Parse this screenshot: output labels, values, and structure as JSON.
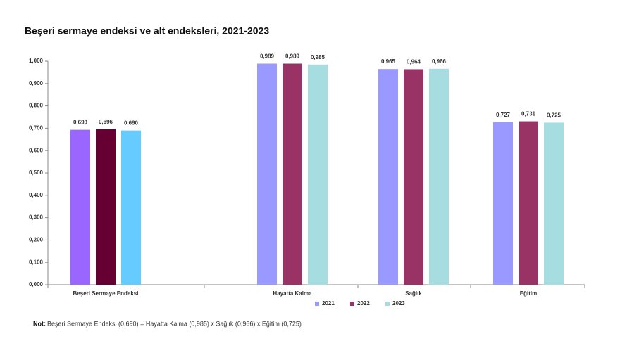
{
  "chart_data": {
    "type": "bar",
    "title": "Beşeri sermaye endeksi ve alt endeksleri, 2021-2023",
    "categories": [
      "Beşeri Sermaye Endeksi",
      "Hayatta Kalma",
      "Sağlık",
      "Eğitim"
    ],
    "series": [
      {
        "name": "2021",
        "color": "#9999ff",
        "colors": [
          "#9966ff",
          "#9999ff",
          "#9999ff",
          "#9999ff"
        ],
        "values": [
          0.693,
          0.989,
          0.965,
          0.727
        ],
        "value_labels": [
          "0,693",
          "0,989",
          "0,965",
          "0,727"
        ]
      },
      {
        "name": "2022",
        "color": "#993366",
        "colors": [
          "#660033",
          "#993366",
          "#993366",
          "#993366"
        ],
        "values": [
          0.696,
          0.989,
          0.964,
          0.731
        ],
        "value_labels": [
          "0,696",
          "0,989",
          "0,964",
          "0,731"
        ]
      },
      {
        "name": "2023",
        "color": "#a6dde0",
        "colors": [
          "#66ccff",
          "#a6dde0",
          "#a6dde0",
          "#a6dde0"
        ],
        "values": [
          0.69,
          0.985,
          0.966,
          0.725
        ],
        "value_labels": [
          "0,690",
          "0,985",
          "0,966",
          "0,725"
        ]
      }
    ],
    "ylim": [
      0,
      1
    ],
    "yticks": [
      {
        "value": 0,
        "label": "0,000"
      },
      {
        "value": 0.1,
        "label": "0,100"
      },
      {
        "value": 0.2,
        "label": "0,200"
      },
      {
        "value": 0.3,
        "label": "0,300"
      },
      {
        "value": 0.4,
        "label": "0,400"
      },
      {
        "value": 0.5,
        "label": "0,500"
      },
      {
        "value": 0.6,
        "label": "0,600"
      },
      {
        "value": 0.7,
        "label": "0,700"
      },
      {
        "value": 0.8,
        "label": "0,800"
      },
      {
        "value": 0.9,
        "label": "0,900"
      },
      {
        "value": 1,
        "label": "1,000"
      }
    ],
    "grid": false,
    "legend": "bottom",
    "note": {
      "label": "Not:",
      "text": "Beşeri Sermaye Endeksi (0,690) = Hayatta Kalma (0,985) x Sağlık (0,966) x Eğitim (0,725)"
    }
  }
}
